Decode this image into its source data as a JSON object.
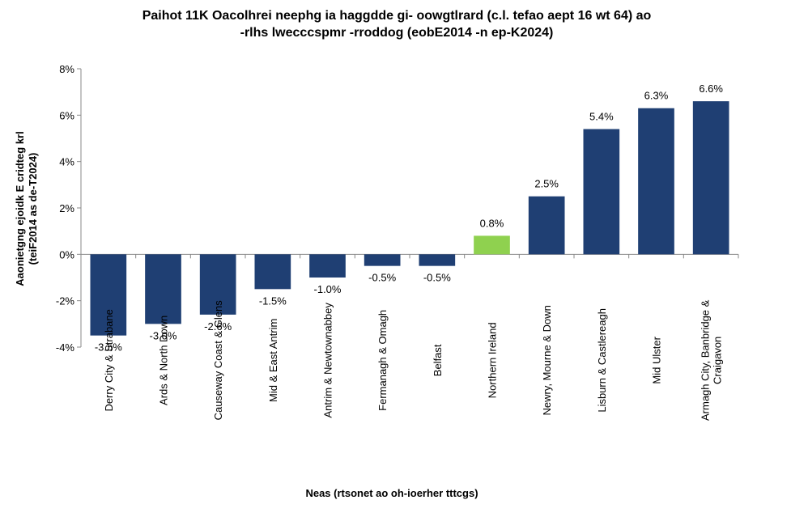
{
  "chart_data": {
    "type": "bar",
    "title_lines": [
      "Paihot 11K Oacolhrei neephg ia haggdde gi- oowgtlrard (c.l. tefao aept 16 wt 64) ao",
      "-rlhs lwecccspmr -rroddog (eobE2014 -n ep-K2024)"
    ],
    "xlabel": "Neas (rtsonet ao oh-ioerher tttcgs)",
    "ylabel_lines": [
      "Aaonietgng ejoidk E cridteg krl",
      "(teiF2014 as de-T2024)"
    ],
    "categories": [
      "Derry City & Strabane",
      "Ards & North Down",
      "Causeway Coast & Glens",
      "Mid & East Antrim",
      "Antrim & Newtownabbey",
      "Fermanagh & Omagh",
      "Belfast",
      "Northern Ireland",
      "Newry, Mourne & Down",
      "Lisburn & Castlereagh",
      "Mid Ulster",
      "Armagh City, Banbridge & Craigavon"
    ],
    "category_lines": [
      [
        "Derry City & Strabane"
      ],
      [
        "Ards & North Down"
      ],
      [
        "Causeway Coast & Glens"
      ],
      [
        "Mid & East Antrim"
      ],
      [
        "Antrim & Newtownabbey"
      ],
      [
        "Fermanagh & Omagh"
      ],
      [
        "Belfast"
      ],
      [
        "Northern Ireland"
      ],
      [
        "Newry, Mourne & Down"
      ],
      [
        "Lisburn & Castlereagh"
      ],
      [
        "Mid Ulster"
      ],
      [
        "Armagh City, Banbridge &",
        "Craigavon"
      ]
    ],
    "values": [
      -3.5,
      -3.0,
      -2.6,
      -1.5,
      -1.0,
      -0.5,
      -0.5,
      0.8,
      2.5,
      5.4,
      6.3,
      6.6
    ],
    "data_labels": [
      "-3.5%",
      "-3.0%",
      "-2.6%",
      "-1.5%",
      "-1.0%",
      "-0.5%",
      "-0.5%",
      "0.8%",
      "2.5%",
      "5.4%",
      "6.3%",
      "6.6%"
    ],
    "highlight_index": 7,
    "ylim": [
      -4,
      8
    ],
    "yticks": [
      -4,
      -2,
      0,
      2,
      4,
      6,
      8
    ],
    "ytick_labels": [
      "-4%",
      "-2%",
      "0%",
      "2%",
      "4%",
      "6%",
      "8%"
    ],
    "grid": false,
    "legend": "none",
    "colors": {
      "bar": "#1f3f73",
      "highlight": "#8fd14f",
      "axis": "#888888"
    }
  }
}
